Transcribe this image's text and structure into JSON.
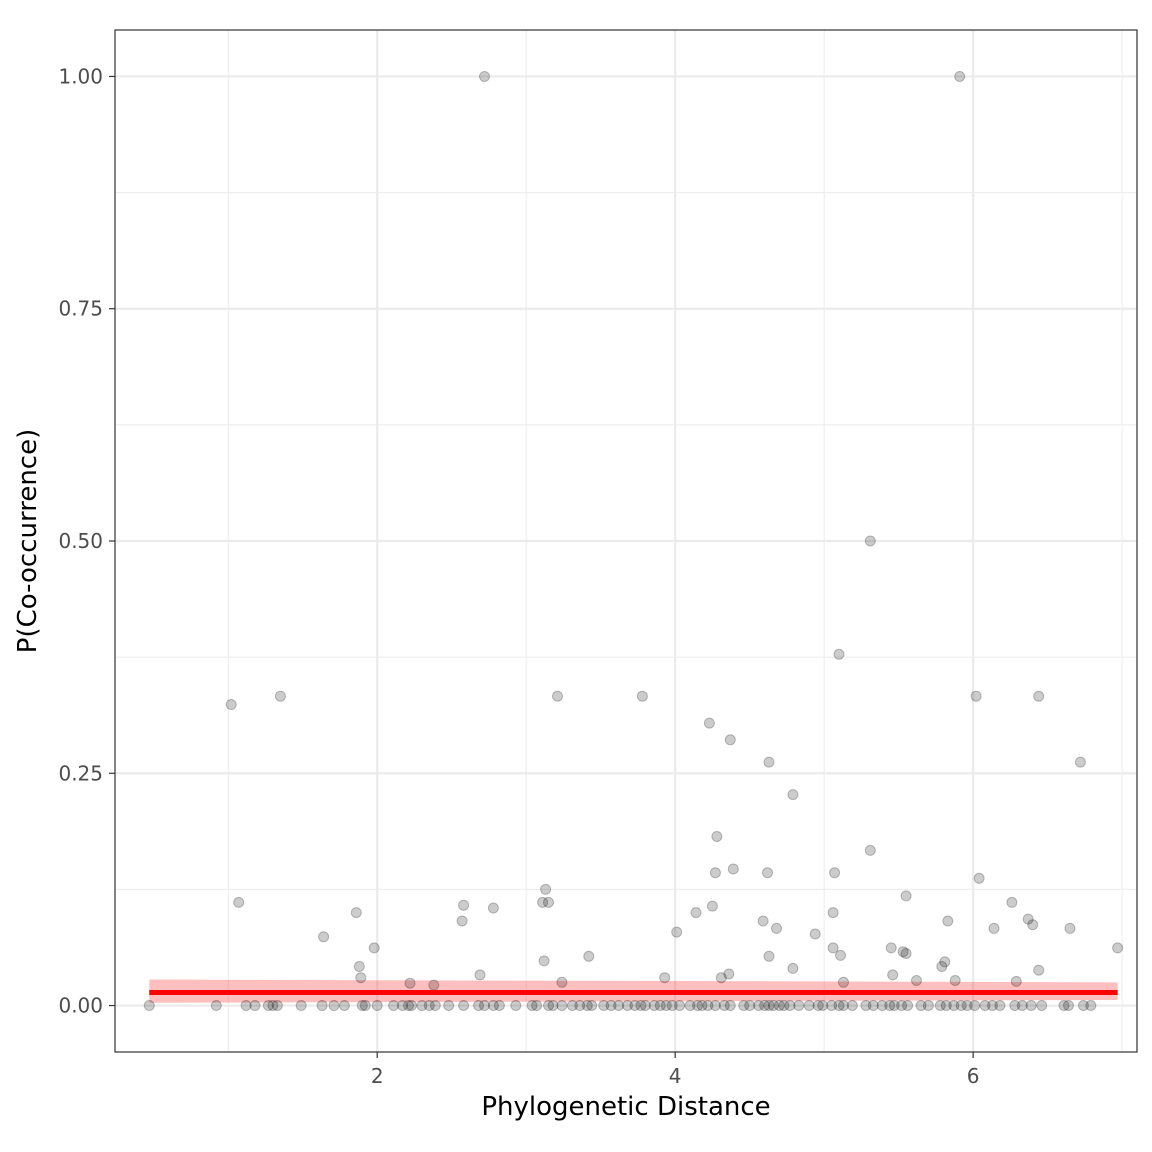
{
  "chart_data": {
    "type": "scatter",
    "title": "",
    "xlabel": "Phylogenetic Distance",
    "ylabel": "P(Co-occurrence)",
    "xlim": [
      0.24,
      7.1
    ],
    "ylim": [
      -0.05,
      1.05
    ],
    "x_ticks": [
      2,
      4,
      6
    ],
    "x_tick_labels": [
      "2",
      "4",
      "6"
    ],
    "y_ticks": [
      0,
      0.25,
      0.5,
      0.75,
      1.0
    ],
    "y_tick_labels": [
      "0.00",
      "0.25",
      "0.50",
      "0.75",
      "1.00"
    ],
    "grid": true,
    "legend": "none",
    "point_color": "#000000",
    "point_opacity": 0.2,
    "fit_color": "#ff0000",
    "fit_line": {
      "x": [
        0.47,
        6.97
      ],
      "y": [
        0.014,
        0.014
      ],
      "ci_low": [
        0.003,
        0.006
      ],
      "ci_high": [
        0.028,
        0.025
      ]
    },
    "points": [
      [
        2.72,
        1.0
      ],
      [
        5.91,
        1.0
      ],
      [
        5.31,
        0.5
      ],
      [
        5.1,
        0.378
      ],
      [
        1.02,
        0.324
      ],
      [
        1.35,
        0.333
      ],
      [
        3.21,
        0.333
      ],
      [
        3.78,
        0.333
      ],
      [
        6.02,
        0.333
      ],
      [
        6.44,
        0.333
      ],
      [
        4.23,
        0.304
      ],
      [
        4.37,
        0.286
      ],
      [
        4.63,
        0.262
      ],
      [
        6.72,
        0.262
      ],
      [
        4.79,
        0.227
      ],
      [
        4.28,
        0.182
      ],
      [
        5.31,
        0.167
      ],
      [
        4.39,
        0.147
      ],
      [
        4.27,
        0.143
      ],
      [
        4.62,
        0.143
      ],
      [
        5.07,
        0.143
      ],
      [
        6.04,
        0.137
      ],
      [
        3.13,
        0.125
      ],
      [
        5.55,
        0.118
      ],
      [
        1.07,
        0.111
      ],
      [
        3.11,
        0.111
      ],
      [
        3.15,
        0.111
      ],
      [
        6.26,
        0.111
      ],
      [
        2.58,
        0.108
      ],
      [
        4.25,
        0.107
      ],
      [
        2.78,
        0.105
      ],
      [
        1.86,
        0.1
      ],
      [
        4.14,
        0.1
      ],
      [
        5.06,
        0.1
      ],
      [
        6.37,
        0.093
      ],
      [
        2.57,
        0.091
      ],
      [
        4.59,
        0.091
      ],
      [
        5.83,
        0.091
      ],
      [
        6.4,
        0.087
      ],
      [
        4.68,
        0.083
      ],
      [
        6.14,
        0.083
      ],
      [
        6.65,
        0.083
      ],
      [
        4.94,
        0.077
      ],
      [
        1.64,
        0.074
      ],
      [
        4.01,
        0.079
      ],
      [
        1.98,
        0.062
      ],
      [
        5.06,
        0.062
      ],
      [
        5.45,
        0.062
      ],
      [
        6.97,
        0.062
      ],
      [
        5.53,
        0.058
      ],
      [
        5.55,
        0.056
      ],
      [
        5.11,
        0.054
      ],
      [
        3.42,
        0.053
      ],
      [
        4.63,
        0.053
      ],
      [
        3.12,
        0.048
      ],
      [
        5.81,
        0.047
      ],
      [
        1.88,
        0.042
      ],
      [
        5.79,
        0.042
      ],
      [
        4.79,
        0.04
      ],
      [
        6.44,
        0.038
      ],
      [
        4.36,
        0.034
      ],
      [
        5.46,
        0.033
      ],
      [
        2.69,
        0.033
      ],
      [
        4.31,
        0.03
      ],
      [
        1.89,
        0.03
      ],
      [
        3.93,
        0.03
      ],
      [
        5.62,
        0.027
      ],
      [
        5.88,
        0.027
      ],
      [
        3.24,
        0.025
      ],
      [
        5.13,
        0.025
      ],
      [
        2.22,
        0.024
      ],
      [
        6.29,
        0.026
      ],
      [
        2.38,
        0.022
      ],
      [
        0.47,
        0
      ],
      [
        0.92,
        0
      ],
      [
        1.12,
        0
      ],
      [
        1.18,
        0
      ],
      [
        1.27,
        0
      ],
      [
        1.3,
        0
      ],
      [
        1.33,
        0
      ],
      [
        1.49,
        0
      ],
      [
        1.63,
        0
      ],
      [
        1.71,
        0
      ],
      [
        1.78,
        0
      ],
      [
        1.9,
        0
      ],
      [
        1.92,
        0
      ],
      [
        2.0,
        0
      ],
      [
        2.11,
        0
      ],
      [
        2.17,
        0
      ],
      [
        2.21,
        0
      ],
      [
        2.23,
        0
      ],
      [
        2.3,
        0
      ],
      [
        2.35,
        0
      ],
      [
        2.39,
        0
      ],
      [
        2.48,
        0
      ],
      [
        2.58,
        0
      ],
      [
        2.68,
        0
      ],
      [
        2.72,
        0
      ],
      [
        2.78,
        0
      ],
      [
        2.82,
        0
      ],
      [
        2.93,
        0
      ],
      [
        3.04,
        0
      ],
      [
        3.07,
        0
      ],
      [
        3.15,
        0
      ],
      [
        3.18,
        0
      ],
      [
        3.24,
        0
      ],
      [
        3.31,
        0
      ],
      [
        3.36,
        0
      ],
      [
        3.41,
        0
      ],
      [
        3.44,
        0
      ],
      [
        3.52,
        0
      ],
      [
        3.57,
        0
      ],
      [
        3.62,
        0
      ],
      [
        3.68,
        0
      ],
      [
        3.73,
        0
      ],
      [
        3.77,
        0
      ],
      [
        3.8,
        0
      ],
      [
        3.86,
        0
      ],
      [
        3.9,
        0
      ],
      [
        3.94,
        0
      ],
      [
        3.98,
        0
      ],
      [
        4.03,
        0
      ],
      [
        4.1,
        0
      ],
      [
        4.15,
        0
      ],
      [
        4.18,
        0
      ],
      [
        4.22,
        0
      ],
      [
        4.27,
        0
      ],
      [
        4.33,
        0
      ],
      [
        4.37,
        0
      ],
      [
        4.46,
        0
      ],
      [
        4.5,
        0
      ],
      [
        4.56,
        0
      ],
      [
        4.6,
        0
      ],
      [
        4.63,
        0
      ],
      [
        4.66,
        0
      ],
      [
        4.7,
        0
      ],
      [
        4.73,
        0
      ],
      [
        4.77,
        0
      ],
      [
        4.83,
        0
      ],
      [
        4.9,
        0
      ],
      [
        4.96,
        0
      ],
      [
        4.99,
        0
      ],
      [
        5.05,
        0
      ],
      [
        5.1,
        0
      ],
      [
        5.13,
        0
      ],
      [
        5.19,
        0
      ],
      [
        5.28,
        0
      ],
      [
        5.33,
        0
      ],
      [
        5.39,
        0
      ],
      [
        5.44,
        0
      ],
      [
        5.47,
        0
      ],
      [
        5.52,
        0
      ],
      [
        5.56,
        0
      ],
      [
        5.65,
        0
      ],
      [
        5.7,
        0
      ],
      [
        5.78,
        0
      ],
      [
        5.82,
        0
      ],
      [
        5.87,
        0
      ],
      [
        5.92,
        0
      ],
      [
        5.96,
        0
      ],
      [
        6.01,
        0
      ],
      [
        6.08,
        0
      ],
      [
        6.13,
        0
      ],
      [
        6.18,
        0
      ],
      [
        6.28,
        0
      ],
      [
        6.33,
        0
      ],
      [
        6.39,
        0
      ],
      [
        6.46,
        0
      ],
      [
        6.61,
        0
      ],
      [
        6.64,
        0
      ],
      [
        6.74,
        0
      ],
      [
        6.79,
        0
      ]
    ]
  }
}
